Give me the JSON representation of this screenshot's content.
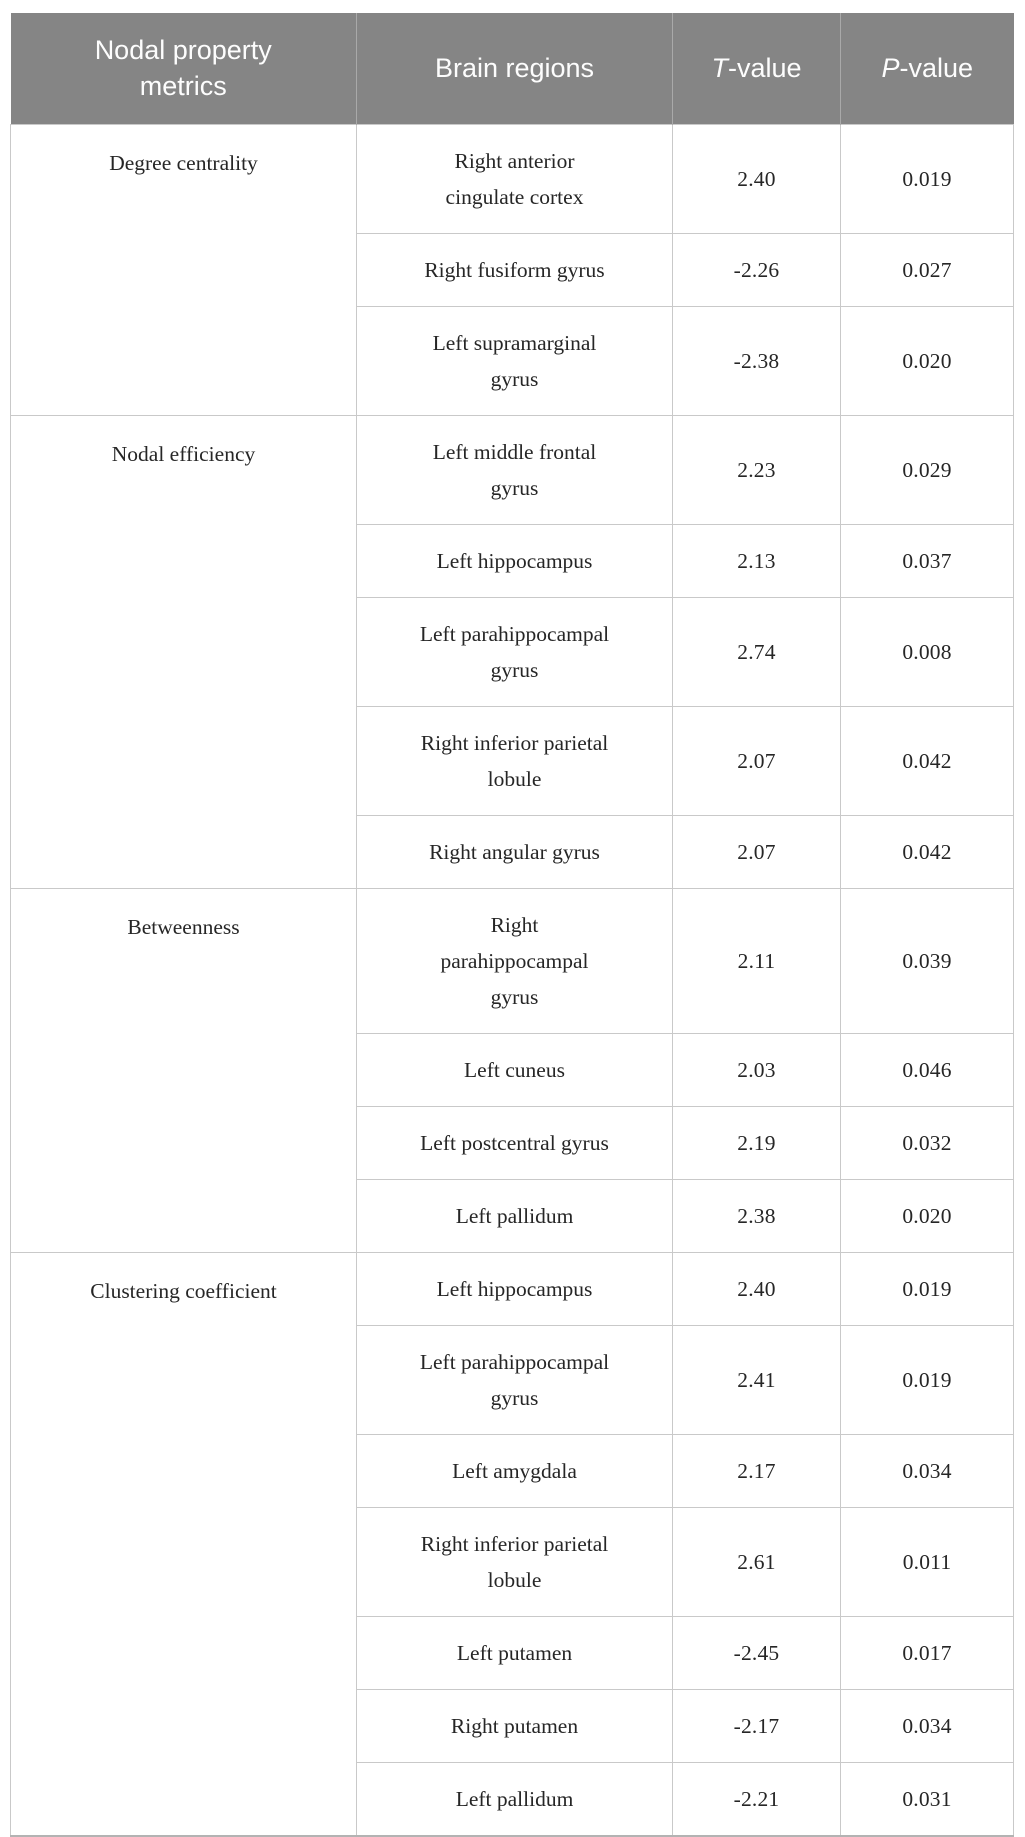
{
  "table": {
    "colors": {
      "header_bg": "#858585",
      "header_text": "#fdfdfd",
      "grid_line": "#c9c9c9",
      "bottom_border": "#b3b3b3",
      "body_text": "#262626"
    },
    "header": {
      "columns": [
        {
          "label": "Nodal property\nmetrics"
        },
        {
          "label": "Brain regions"
        },
        {
          "italic": "T",
          "rest": "-value"
        },
        {
          "italic": "P",
          "rest": "-value"
        }
      ]
    },
    "groups": [
      {
        "metric": "Degree centrality",
        "rows": [
          {
            "region": "Right anterior\ncingulate cortex",
            "t": "2.40",
            "p": "0.019"
          },
          {
            "region": "Right fusiform gyrus",
            "t": "-2.26",
            "p": "0.027"
          },
          {
            "region": "Left supramarginal\ngyrus",
            "t": "-2.38",
            "p": "0.020"
          }
        ]
      },
      {
        "metric": "Nodal efficiency",
        "rows": [
          {
            "region": "Left middle frontal\ngyrus",
            "t": "2.23",
            "p": "0.029"
          },
          {
            "region": "Left hippocampus",
            "t": "2.13",
            "p": "0.037"
          },
          {
            "region": "Left parahippocampal\ngyrus",
            "t": "2.74",
            "p": "0.008"
          },
          {
            "region": "Right inferior parietal\nlobule",
            "t": "2.07",
            "p": "0.042"
          },
          {
            "region": "Right angular gyrus",
            "t": "2.07",
            "p": "0.042"
          }
        ]
      },
      {
        "metric": "Betweenness",
        "rows": [
          {
            "region": "Right\nparahippocampal\ngyrus",
            "t": "2.11",
            "p": "0.039"
          },
          {
            "region": "Left cuneus",
            "t": "2.03",
            "p": "0.046"
          },
          {
            "region": "Left postcentral gyrus",
            "t": "2.19",
            "p": "0.032"
          },
          {
            "region": "Left pallidum",
            "t": "2.38",
            "p": "0.020"
          }
        ]
      },
      {
        "metric": "Clustering coefficient",
        "rows": [
          {
            "region": "Left hippocampus",
            "t": "2.40",
            "p": "0.019"
          },
          {
            "region": "Left parahippocampal\ngyrus",
            "t": "2.41",
            "p": "0.019"
          },
          {
            "region": "Left amygdala",
            "t": "2.17",
            "p": "0.034"
          },
          {
            "region": "Right inferior parietal\nlobule",
            "t": "2.61",
            "p": "0.011"
          },
          {
            "region": "Left putamen",
            "t": "-2.45",
            "p": "0.017"
          },
          {
            "region": "Right putamen",
            "t": "-2.17",
            "p": "0.034"
          },
          {
            "region": "Left pallidum",
            "t": "-2.21",
            "p": "0.031"
          }
        ]
      }
    ]
  }
}
